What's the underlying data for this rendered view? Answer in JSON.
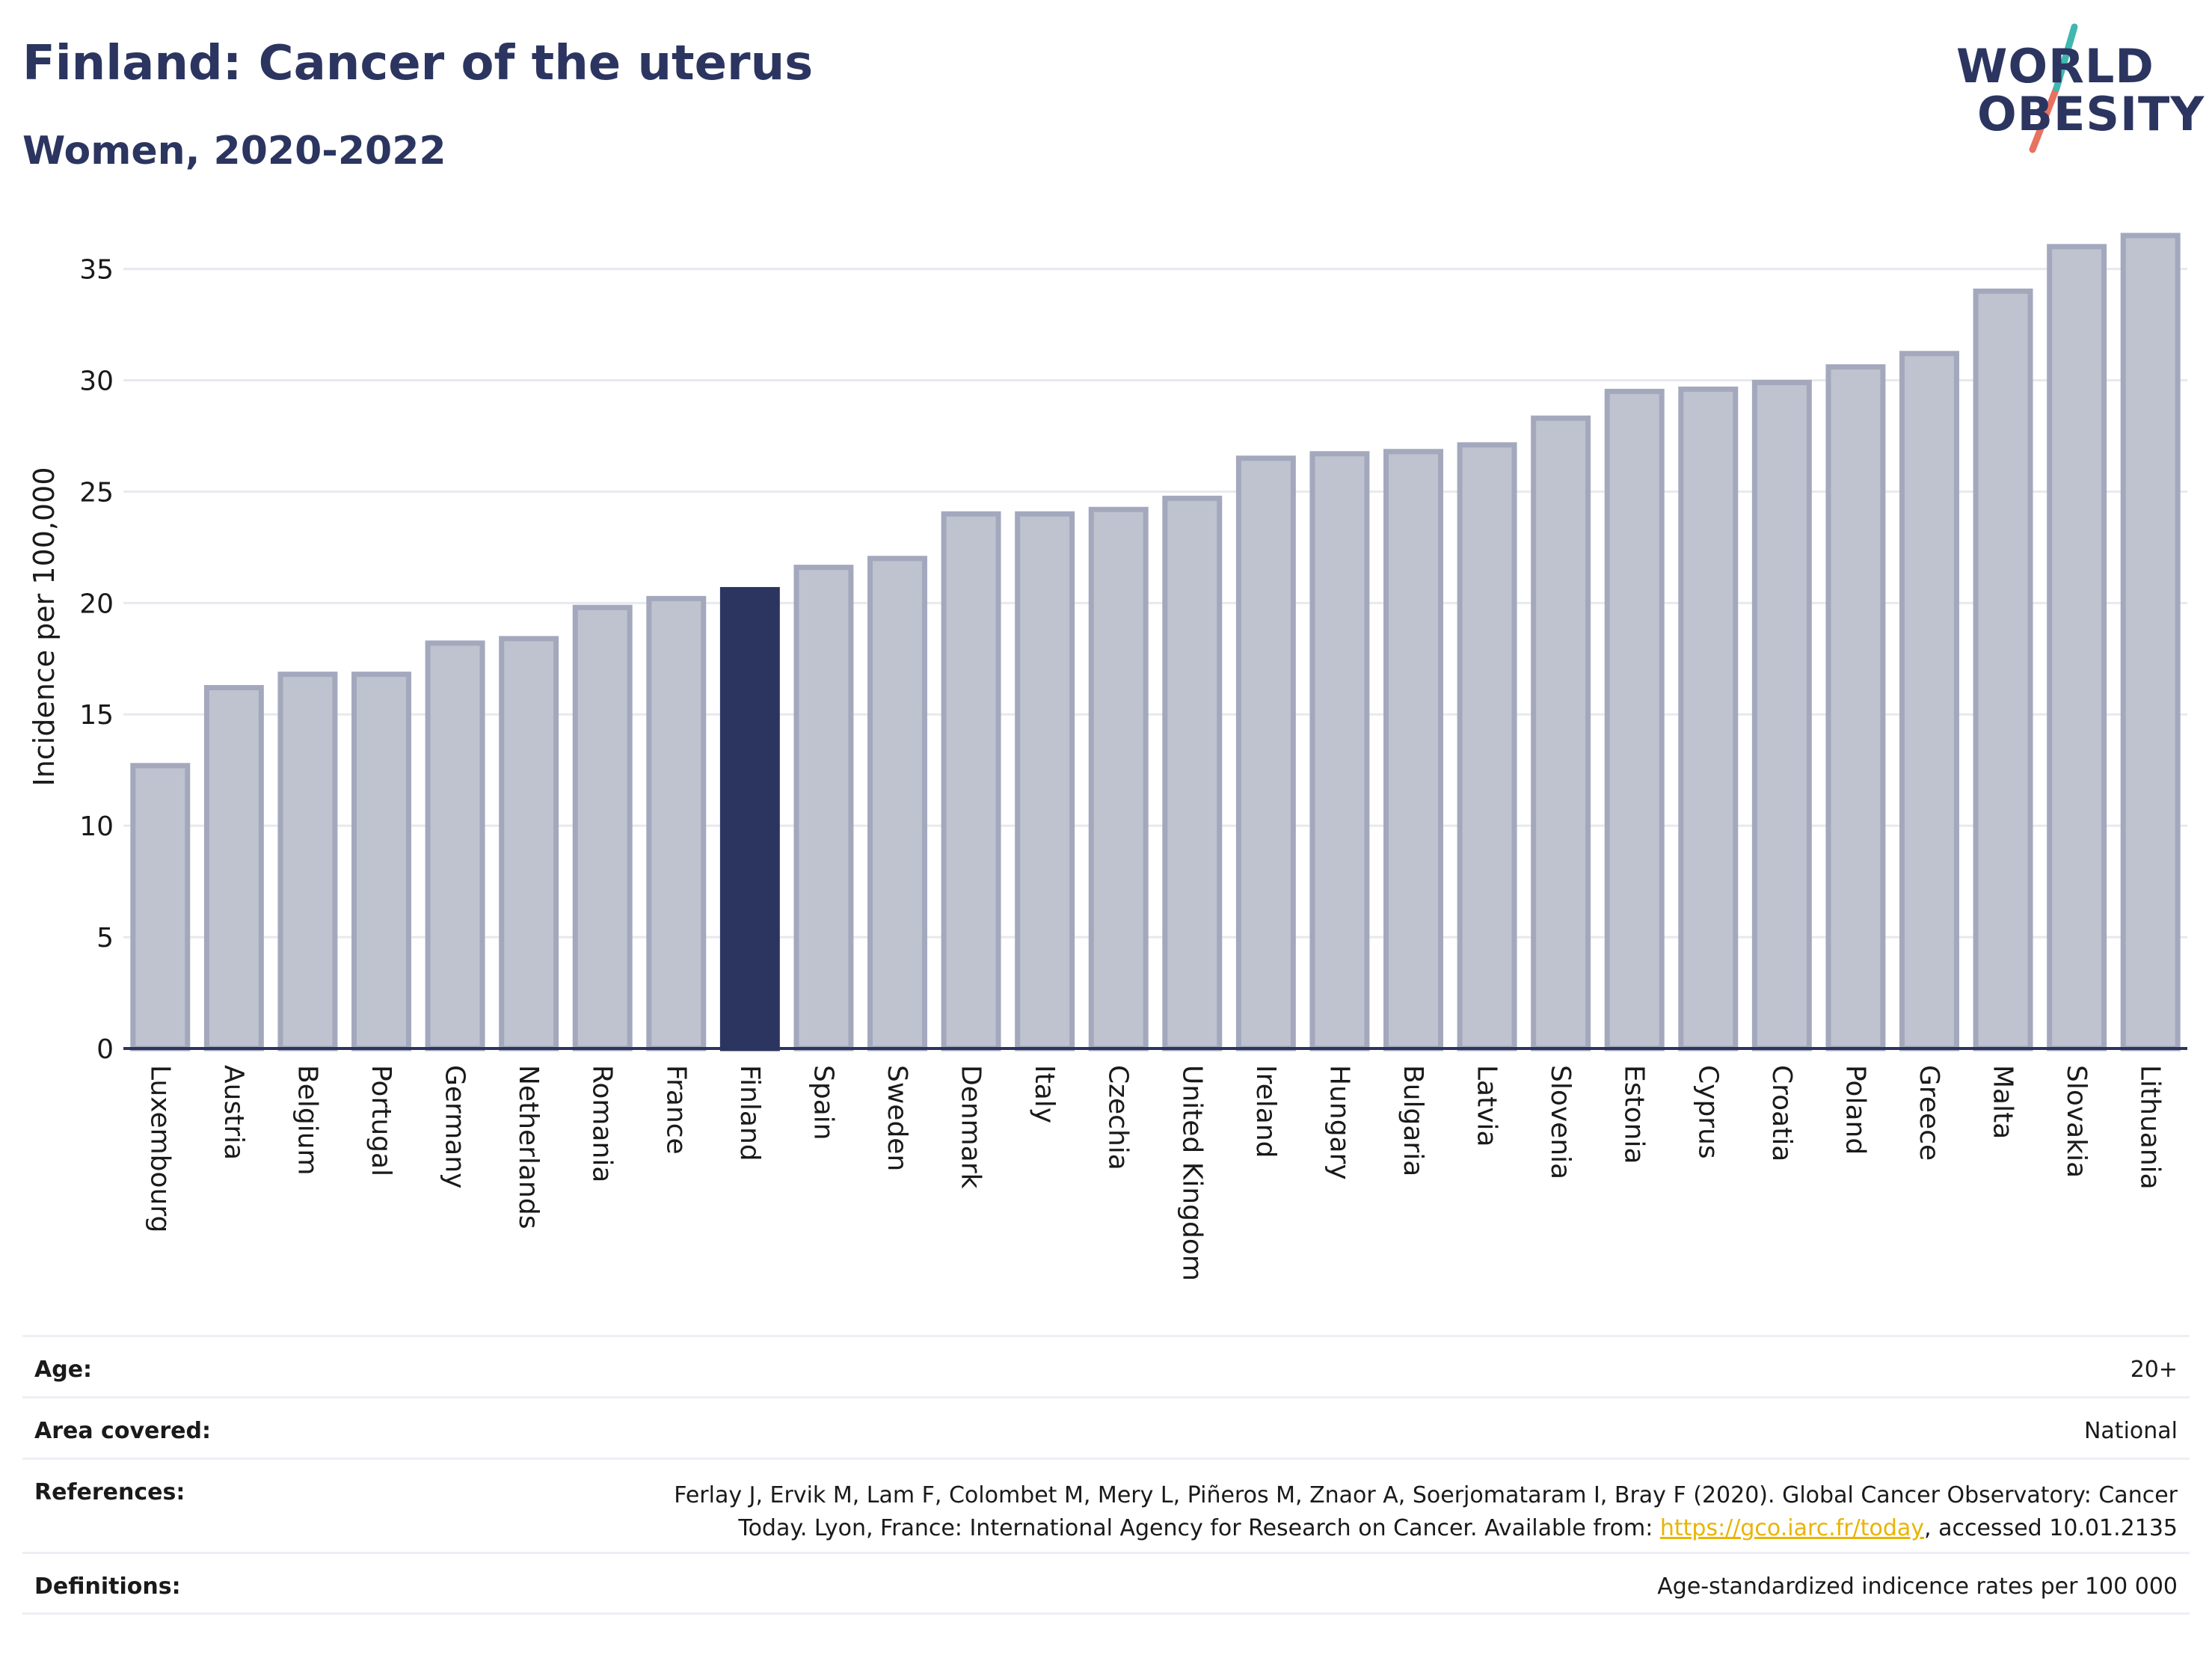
{
  "header": {
    "title": "Finland: Cancer of the uterus",
    "subtitle": "Women, 2020-2022"
  },
  "logo": {
    "line1": "WORLD",
    "line2": "OBESITY"
  },
  "colors": {
    "highlight": "#2b3560",
    "bar": "#bfc3cf",
    "bar_border": "#a3a8bd",
    "grid": "#e8e9ee",
    "link": "#e9b400"
  },
  "chart_data": {
    "type": "bar",
    "ylabel": "Incidence per 100,000",
    "ylim": [
      0,
      37
    ],
    "yticks": [
      0,
      5,
      10,
      15,
      20,
      25,
      30,
      35
    ],
    "grid": true,
    "highlight": "Finland",
    "categories": [
      "Luxembourg",
      "Austria",
      "Belgium",
      "Portugal",
      "Germany",
      "Netherlands",
      "Romania",
      "France",
      "Finland",
      "Spain",
      "Sweden",
      "Denmark",
      "Italy",
      "Czechia",
      "United Kingdom",
      "Ireland",
      "Hungary",
      "Bulgaria",
      "Latvia",
      "Slovenia",
      "Estonia",
      "Cyprus",
      "Croatia",
      "Poland",
      "Greece",
      "Malta",
      "Slovakia",
      "Lithuania"
    ],
    "values": [
      12.7,
      16.2,
      16.8,
      16.8,
      18.2,
      18.4,
      19.8,
      20.2,
      20.6,
      21.6,
      22.0,
      24.0,
      24.0,
      24.2,
      24.7,
      26.5,
      26.7,
      26.8,
      27.1,
      28.3,
      29.5,
      29.6,
      29.9,
      30.6,
      31.2,
      34.0,
      36.0,
      36.5
    ]
  },
  "meta": {
    "age_label": "Age:",
    "age_value": "20+",
    "area_label": "Area covered:",
    "area_value": "National",
    "references_label": "References:",
    "references_text_1": "Ferlay J, Ervik M, Lam F, Colombet M, Mery L, Piñeros M, Znaor A, Soerjomataram I, Bray F (2020). Global Cancer Observatory: Cancer",
    "references_text_2": "Today. Lyon, France: International Agency for Research on Cancer. Available from: ",
    "references_link": "https://gco.iarc.fr/today",
    "references_text_3": ", accessed 10.01.2135",
    "definitions_label": "Definitions:",
    "definitions_value": "Age-standardized indicence rates per 100 000"
  }
}
